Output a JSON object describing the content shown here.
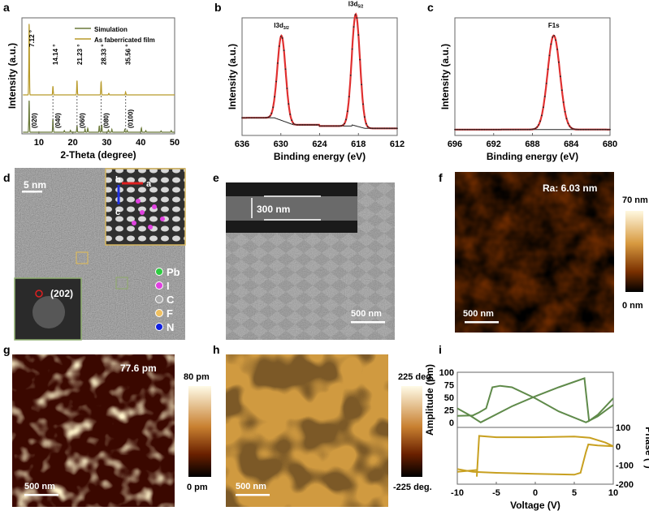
{
  "panels": {
    "a": {
      "label": "a"
    },
    "b": {
      "label": "b"
    },
    "c": {
      "label": "c"
    },
    "d": {
      "label": "d",
      "scale_bar": "5 nm",
      "fft_label": "(202)",
      "axes": [
        "a",
        "b",
        "c"
      ],
      "legend": [
        {
          "name": "Pb",
          "color": "#2ecc40"
        },
        {
          "name": "I",
          "color": "#e040e0"
        },
        {
          "name": "C",
          "color": "#aaaaaa"
        },
        {
          "name": "F",
          "color": "#f0c060"
        },
        {
          "name": "N",
          "color": "#1020e0"
        }
      ]
    },
    "e": {
      "label": "e",
      "inset_thickness": "300 nm",
      "scale_bar": "500 nm"
    },
    "f": {
      "label": "f",
      "roughness": "Ra: 6.03 nm",
      "scale_bar": "500 nm",
      "colorbar_max": "70 nm",
      "colorbar_min": "0 nm"
    },
    "g": {
      "label": "g",
      "value_label": "77.6 pm",
      "scale_bar": "500 nm",
      "colorbar_max": "80 pm",
      "colorbar_min": "0 pm"
    },
    "h": {
      "label": "h",
      "scale_bar": "500 nm",
      "colorbar_max": "225 deg.",
      "colorbar_min": "-225 deg."
    },
    "i": {
      "label": "i"
    }
  },
  "chart_data": [
    {
      "id": "a",
      "type": "line",
      "xlabel": "2-Theta (degree)",
      "ylabel": "Intensity (a.u.)",
      "xlim": [
        5,
        50
      ],
      "xticks": [
        10,
        20,
        30,
        40,
        50
      ],
      "legend_position": "top-right",
      "series": [
        {
          "name": "Simulation",
          "color": "#6b7a3a",
          "peaks": [
            [
              7.12,
              1.0
            ],
            [
              14.14,
              0.42
            ],
            [
              17.5,
              0.05
            ],
            [
              19.3,
              0.06
            ],
            [
              21.23,
              0.2
            ],
            [
              23.6,
              0.1
            ],
            [
              24.4,
              0.12
            ],
            [
              27.8,
              0.2
            ],
            [
              28.5,
              0.23
            ],
            [
              30.5,
              0.07
            ],
            [
              31.5,
              0.09
            ],
            [
              35.3,
              0.08
            ],
            [
              36,
              0.06
            ],
            [
              40.2,
              0.13
            ],
            [
              41.5,
              0.05
            ],
            [
              46,
              0.04
            ],
            [
              49,
              0.05
            ]
          ]
        },
        {
          "name": "As faberricated film",
          "color": "#b89a2a",
          "peaks": [
            [
              7.12,
              1.0
            ],
            [
              14.14,
              0.12
            ],
            [
              21.23,
              0.2
            ],
            [
              28.33,
              0.18
            ],
            [
              30.6,
              0.02
            ],
            [
              35.56,
              0.04
            ]
          ]
        }
      ],
      "annotations": [
        "7.12 °",
        "14.14 °",
        "21.23 °",
        "28.33 °",
        "35.56 °"
      ],
      "annotation_x": [
        7.12,
        14.14,
        21.23,
        28.33,
        35.56
      ],
      "hkl": [
        "(020)",
        "(040)",
        "(060)",
        "(080)",
        "(0100)"
      ]
    },
    {
      "id": "b",
      "type": "line",
      "xlabel": "Binding energy (eV)",
      "ylabel": "Intensity (a.u.)",
      "xlim": [
        636,
        612
      ],
      "xticks": [
        636,
        630,
        624,
        618,
        612
      ],
      "peaks": [
        {
          "label": "I3d",
          "sub": "3/2",
          "center": 629.9,
          "height": 0.72
        },
        {
          "label": "I3d",
          "sub": "5/2",
          "center": 618.4,
          "height": 0.95
        }
      ],
      "data_color": "#222222",
      "fit_color": "#e03030"
    },
    {
      "id": "c",
      "type": "line",
      "xlabel": "Binding energy (eV)",
      "ylabel": "Intensity (a.u.)",
      "xlim": [
        696,
        680
      ],
      "xticks": [
        696,
        692,
        688,
        684,
        680
      ],
      "peaks": [
        {
          "label": "F1s",
          "center": 685.8,
          "height": 0.8
        }
      ],
      "data_color": "#222222",
      "fit_color": "#e03030"
    },
    {
      "id": "i",
      "type": "line",
      "xlabel": "Voltage (V)",
      "ylabel_left": "Amplitude (pm)",
      "ylabel_right": "Phase (°)",
      "xlim": [
        -10,
        10
      ],
      "xticks": [
        -10,
        -5,
        0,
        5,
        10
      ],
      "amp_ylim": [
        -10,
        100
      ],
      "amp_yticks": [
        0,
        25,
        50,
        75,
        100
      ],
      "phase_ylim": [
        -200,
        100
      ],
      "phase_yticks": [
        100,
        0,
        -100,
        -200
      ],
      "amplitude": {
        "color": "#5f8a4a",
        "forward": [
          [
            -10,
            28
          ],
          [
            -8.5,
            15
          ],
          [
            -7,
            0
          ],
          [
            -3,
            32
          ],
          [
            0,
            52
          ],
          [
            3,
            70
          ],
          [
            6.3,
            88
          ],
          [
            6.9,
            3
          ],
          [
            8,
            15
          ],
          [
            10,
            48
          ]
        ],
        "reverse": [
          [
            10,
            35
          ],
          [
            8,
            12
          ],
          [
            6.5,
            0
          ],
          [
            3,
            22
          ],
          [
            0,
            48
          ],
          [
            -3,
            70
          ],
          [
            -4.5,
            73
          ],
          [
            -5.5,
            70
          ],
          [
            -6.3,
            28
          ],
          [
            -7.2,
            20
          ],
          [
            -8,
            14
          ],
          [
            -10,
            13
          ]
        ]
      },
      "phase": {
        "color": "#c8a020",
        "upper": [
          [
            -7.5,
            -160
          ],
          [
            -7.2,
            55
          ],
          [
            -5,
            48
          ],
          [
            0,
            48
          ],
          [
            5,
            52
          ],
          [
            7,
            45
          ],
          [
            9,
            20
          ],
          [
            10,
            0
          ]
        ],
        "lower": [
          [
            -10,
            -120
          ],
          [
            -8,
            -135
          ],
          [
            -5,
            -140
          ],
          [
            0,
            -145
          ],
          [
            5,
            -150
          ],
          [
            5.8,
            -140
          ],
          [
            6.5,
            -30
          ],
          [
            6.8,
            10
          ],
          [
            8,
            5
          ],
          [
            10,
            0
          ]
        ],
        "left_tail": [
          [
            -10,
            -135
          ],
          [
            -7.5,
            -125
          ]
        ]
      }
    }
  ]
}
